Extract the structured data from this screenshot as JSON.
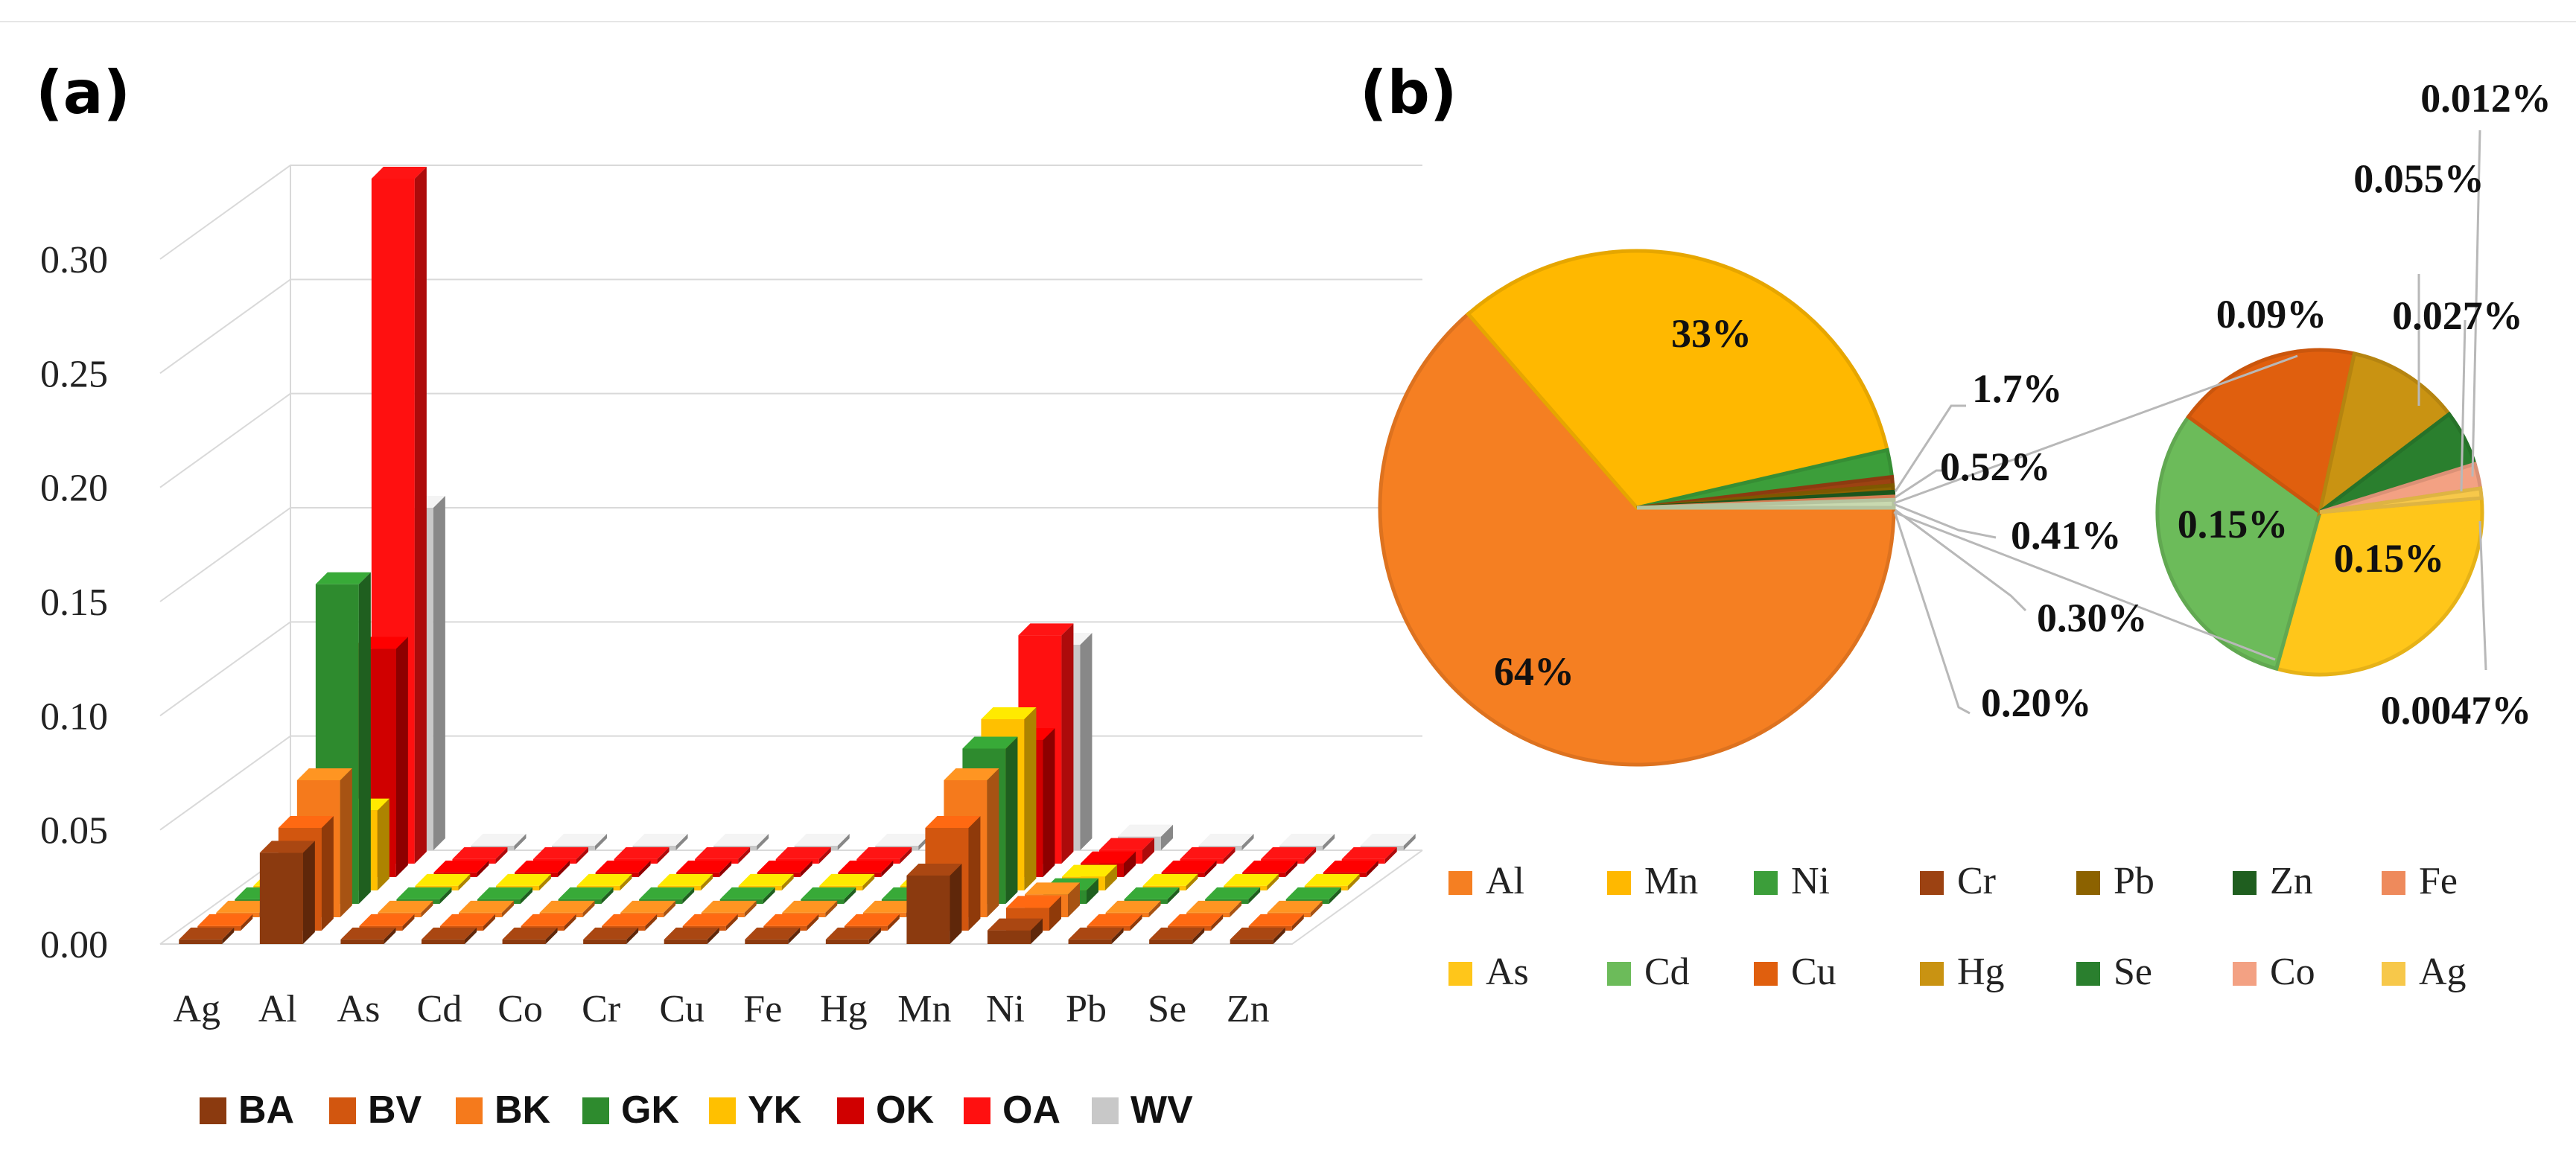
{
  "panel_a_label": "(a)",
  "panel_b_label": "(b)",
  "chart_data": [
    {
      "type": "bar",
      "subtype": "3d-clustered-bar",
      "title": "",
      "categories": [
        "Ag",
        "Al",
        "As",
        "Cd",
        "Co",
        "Cr",
        "Cu",
        "Fe",
        "Hg",
        "Mn",
        "Ni",
        "Pb",
        "Se",
        "Zn"
      ],
      "ylim": [
        0,
        0.3
      ],
      "yticks": [
        "0.00",
        "0.05",
        "0.10",
        "0.15",
        "0.20",
        "0.25",
        "0.30"
      ],
      "grid": true,
      "legend_position": "bottom",
      "series": [
        {
          "name": "BA",
          "color": "#8B3A0F",
          "values": [
            0.002,
            0.04,
            0.002,
            0.002,
            0.002,
            0.002,
            0.002,
            0.002,
            0.002,
            0.03,
            0.006,
            0.002,
            0.002,
            0.002
          ]
        },
        {
          "name": "BV",
          "color": "#D2560F",
          "values": [
            0.002,
            0.045,
            0.002,
            0.002,
            0.002,
            0.002,
            0.002,
            0.002,
            0.002,
            0.045,
            0.01,
            0.002,
            0.002,
            0.002
          ]
        },
        {
          "name": "BK",
          "color": "#F57A1C",
          "values": [
            0.002,
            0.06,
            0.002,
            0.002,
            0.002,
            0.002,
            0.002,
            0.002,
            0.002,
            0.06,
            0.01,
            0.002,
            0.002,
            0.002
          ]
        },
        {
          "name": "GK",
          "color": "#2E8B2E",
          "values": [
            0.002,
            0.14,
            0.002,
            0.002,
            0.002,
            0.002,
            0.002,
            0.002,
            0.002,
            0.068,
            0.006,
            0.002,
            0.002,
            0.002
          ]
        },
        {
          "name": "YK",
          "color": "#FFC000",
          "values": [
            0.002,
            0.035,
            0.002,
            0.002,
            0.002,
            0.002,
            0.002,
            0.002,
            0.002,
            0.075,
            0.006,
            0.002,
            0.002,
            0.002
          ]
        },
        {
          "name": "OK",
          "color": "#D00000",
          "values": [
            0.002,
            0.1,
            0.002,
            0.002,
            0.002,
            0.002,
            0.002,
            0.002,
            0.002,
            0.06,
            0.006,
            0.002,
            0.002,
            0.002
          ]
        },
        {
          "name": "OA",
          "color": "#FF1010",
          "values": [
            0.002,
            0.3,
            0.002,
            0.002,
            0.002,
            0.002,
            0.002,
            0.002,
            0.002,
            0.1,
            0.006,
            0.002,
            0.002,
            0.002
          ]
        },
        {
          "name": "WV",
          "color": "#C8C8C8",
          "values": [
            0.002,
            0.15,
            0.002,
            0.002,
            0.002,
            0.002,
            0.002,
            0.002,
            0.002,
            0.09,
            0.006,
            0.002,
            0.002,
            0.002
          ]
        }
      ]
    },
    {
      "type": "pie",
      "subtype": "pie-of-pie",
      "main_slices": [
        {
          "name": "Al",
          "value": 64,
          "label": "64%",
          "color": "#F57F22"
        },
        {
          "name": "Mn",
          "value": 33,
          "label": "33%",
          "color": "#FFB800"
        },
        {
          "name": "Ni",
          "value": 1.7,
          "label": "1.7%",
          "color": "#3C9E3A"
        },
        {
          "name": "Cr",
          "value": 0.52,
          "label": "0.52%",
          "color": "#9C4212"
        },
        {
          "name": "Pb",
          "value": 0.41,
          "label": "0.41%",
          "color": "#8C6200"
        },
        {
          "name": "Zn",
          "value": 0.3,
          "label": "0.30%",
          "color": "#1F5E1F"
        },
        {
          "name": "Fe",
          "value": 0.2,
          "label": "0.20%",
          "color": "#EE8A5C"
        }
      ],
      "other_total": 0.5,
      "secondary_slices": [
        {
          "name": "As",
          "value": 0.15,
          "label": "0.15%",
          "color": "#FFC61A"
        },
        {
          "name": "Cd",
          "value": 0.15,
          "label": "0.15%",
          "color": "#6CBB5A"
        },
        {
          "name": "Cu",
          "value": 0.09,
          "label": "0.09%",
          "color": "#E05F0E"
        },
        {
          "name": "Hg",
          "value": 0.055,
          "label": "0.055%",
          "color": "#C99312"
        },
        {
          "name": "Se",
          "value": 0.027,
          "label": "0.027%",
          "color": "#2A7F2E"
        },
        {
          "name": "Co",
          "value": 0.012,
          "label": "0.012%",
          "color": "#F3A183"
        },
        {
          "name": "Ag",
          "value": 0.0047,
          "label": "0.0047%",
          "color": "#F7C84A"
        }
      ],
      "legend_order": [
        "Al",
        "Mn",
        "Ni",
        "Cr",
        "Pb",
        "Zn",
        "Fe",
        "As",
        "Cd",
        "Cu",
        "Hg",
        "Se",
        "Co",
        "Ag"
      ],
      "legend_position": "bottom"
    }
  ]
}
